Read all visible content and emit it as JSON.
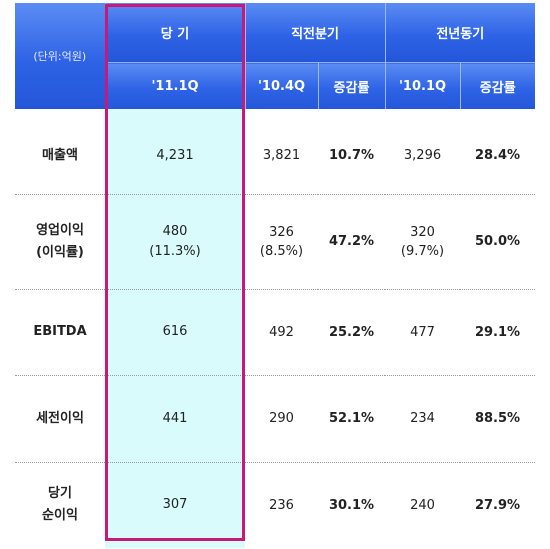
{
  "header": {
    "unit_label": "(단위:억원)",
    "current_period": {
      "title": "당 기",
      "sub": "'11.1Q"
    },
    "prev_quarter": {
      "title": "직전분기",
      "col_period": "'10.4Q",
      "col_growth": "증감률"
    },
    "prev_year": {
      "title": "전년동기",
      "col_period": "'10.1Q",
      "col_growth": "증감률"
    }
  },
  "rows": [
    {
      "label_line1": "매출액",
      "label_line2": "",
      "current": "4,231",
      "current_sub": "",
      "q_value": "3,821",
      "q_sub": "",
      "q_growth": "10.7%",
      "y_value": "3,296",
      "y_sub": "",
      "y_growth": "28.4%"
    },
    {
      "label_line1": "영업이익",
      "label_line2": "(이익률)",
      "current": "480",
      "current_sub": "(11.3%)",
      "q_value": "326",
      "q_sub": "(8.5%)",
      "q_growth": "47.2%",
      "y_value": "320",
      "y_sub": "(9.7%)",
      "y_growth": "50.0%"
    },
    {
      "label_line1": "EBITDA",
      "label_line2": "",
      "current": "616",
      "current_sub": "",
      "q_value": "492",
      "q_sub": "",
      "q_growth": "25.2%",
      "y_value": "477",
      "y_sub": "",
      "y_growth": "29.1%"
    },
    {
      "label_line1": "세전이익",
      "label_line2": "",
      "current": "441",
      "current_sub": "",
      "q_value": "290",
      "q_sub": "",
      "q_growth": "52.1%",
      "y_value": "234",
      "y_sub": "",
      "y_growth": "88.5%"
    },
    {
      "label_line1": "당기",
      "label_line2": "순이익",
      "current": "307",
      "current_sub": "",
      "q_value": "236",
      "q_sub": "",
      "q_growth": "30.1%",
      "y_value": "240",
      "y_sub": "",
      "y_growth": "27.9%"
    }
  ],
  "colors": {
    "header_blue": "#2e63e6",
    "highlight_border": "#c8197a",
    "current_bg": "#d9fbfb",
    "current_text": "#1d2cd6"
  }
}
